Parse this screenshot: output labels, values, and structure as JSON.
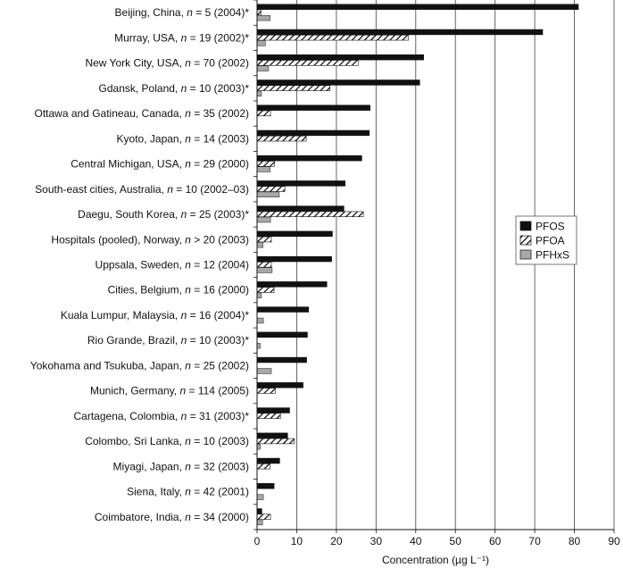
{
  "chart_data": {
    "type": "bar",
    "orientation": "horizontal",
    "categories": [
      "Beijing, China, n = 5 (2004)*",
      "Murray, USA, n = 19 (2002)*",
      "New York City, USA, n = 70 (2002)",
      "Gdansk, Poland, n = 10 (2003)*",
      "Ottawa and Gatineau, Canada, n = 35 (2002)",
      "Kyoto, Japan, n = 14 (2003)",
      "Central Michigan, USA, n = 29 (2000)",
      "South-east cities, Australia, n = 10 (2002–03)",
      "Daegu, South Korea, n = 25 (2003)*",
      "Hospitals (pooled), Norway, n > 20 (2003)",
      "Uppsala, Sweden, n = 12 (2004)",
      "Cities, Belgium, n = 16 (2000)",
      "Kuala Lumpur, Malaysia, n = 16 (2004)*",
      "Rio Grande, Brazil, n = 10 (2003)*",
      "Yokohama and Tsukuba, Japan, n = 25 (2002)",
      "Munich, Germany, n = 114 (2005)",
      "Cartagena, Colombia, n = 31 (2003)*",
      "Colombo, Sri Lanka, n = 10 (2003)",
      "Miyagi, Japan, n = 32 (2003)",
      "Siena, Italy, n = 42 (2001)",
      "Coimbatore, India, n = 34 (2000)"
    ],
    "series": [
      {
        "name": "PFOS",
        "pattern": "solid",
        "color": "#111111",
        "values": [
          81,
          72,
          42,
          41,
          28.5,
          28.3,
          26.4,
          22.2,
          21.9,
          19,
          18.8,
          17.6,
          13,
          12.7,
          12.5,
          11.6,
          8.2,
          7.7,
          5.7,
          4.3,
          1.2
        ]
      },
      {
        "name": "PFOA",
        "pattern": "hatched",
        "color": "#111111",
        "values": [
          1,
          38.2,
          25.5,
          18.4,
          3.4,
          12.4,
          4.4,
          7,
          26.8,
          3.6,
          3.6,
          4.3,
          0,
          0,
          0,
          4.6,
          5.9,
          9.4,
          3.3,
          0,
          3.4
        ]
      },
      {
        "name": "PFHxS",
        "pattern": "solid",
        "color": "#a8a8a8",
        "values": [
          3.3,
          2.1,
          2.9,
          1.1,
          0,
          0,
          3.3,
          5.6,
          3.4,
          1.5,
          3.8,
          1.1,
          1.6,
          0.8,
          3.6,
          0,
          0,
          0.8,
          0,
          1.6,
          1.4
        ]
      }
    ],
    "xlabel": "Concentration (µg L⁻¹)",
    "xlim": [
      0,
      90
    ],
    "xticks": [
      "0",
      "10",
      "20",
      "30",
      "40",
      "50",
      "60",
      "70",
      "80",
      "90"
    ],
    "grid": "vertical",
    "legend": {
      "placement": "right",
      "entries": [
        "PFOS",
        "PFOA",
        "PFHxS"
      ]
    }
  }
}
